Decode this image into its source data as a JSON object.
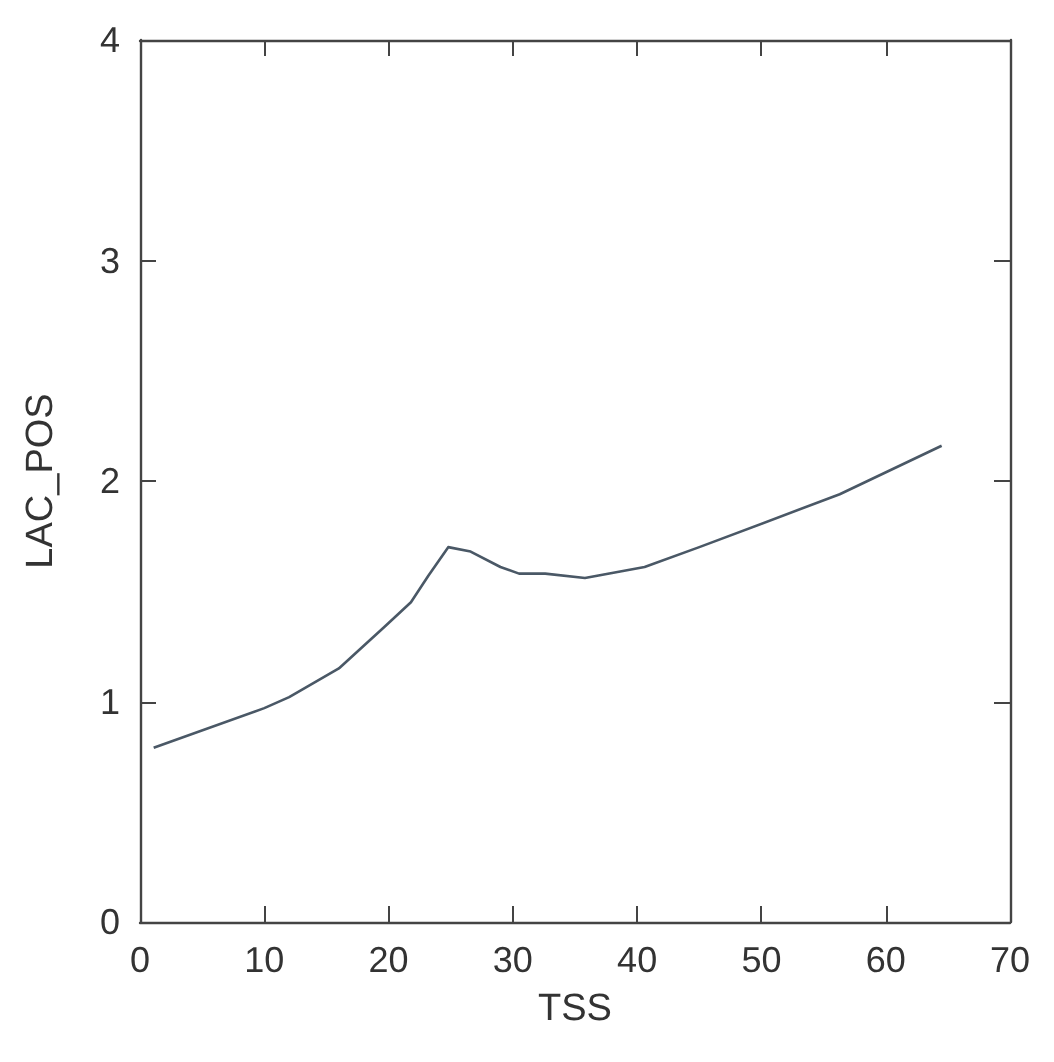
{
  "chart_data": {
    "type": "line",
    "xlabel": "TSS",
    "ylabel": "LAC_POS",
    "x": [
      1.1,
      10,
      12,
      16,
      19.7,
      21.8,
      23.2,
      24.8,
      26.6,
      29,
      30.5,
      32.6,
      35.8,
      40.6,
      45,
      56.3,
      64.5
    ],
    "values": [
      0.79,
      0.97,
      1.02,
      1.15,
      1.34,
      1.45,
      1.57,
      1.7,
      1.68,
      1.61,
      1.58,
      1.58,
      1.56,
      1.61,
      1.7,
      1.94,
      2.16
    ],
    "color": "#4a5866",
    "xlim": [
      0,
      70
    ],
    "xticks": [
      0,
      10,
      20,
      30,
      40,
      50,
      60,
      70
    ],
    "ylim": [
      0,
      4
    ],
    "yticks": [
      0,
      1,
      2,
      3,
      4
    ],
    "grid": false,
    "marker": "none",
    "line_style": "solid"
  }
}
